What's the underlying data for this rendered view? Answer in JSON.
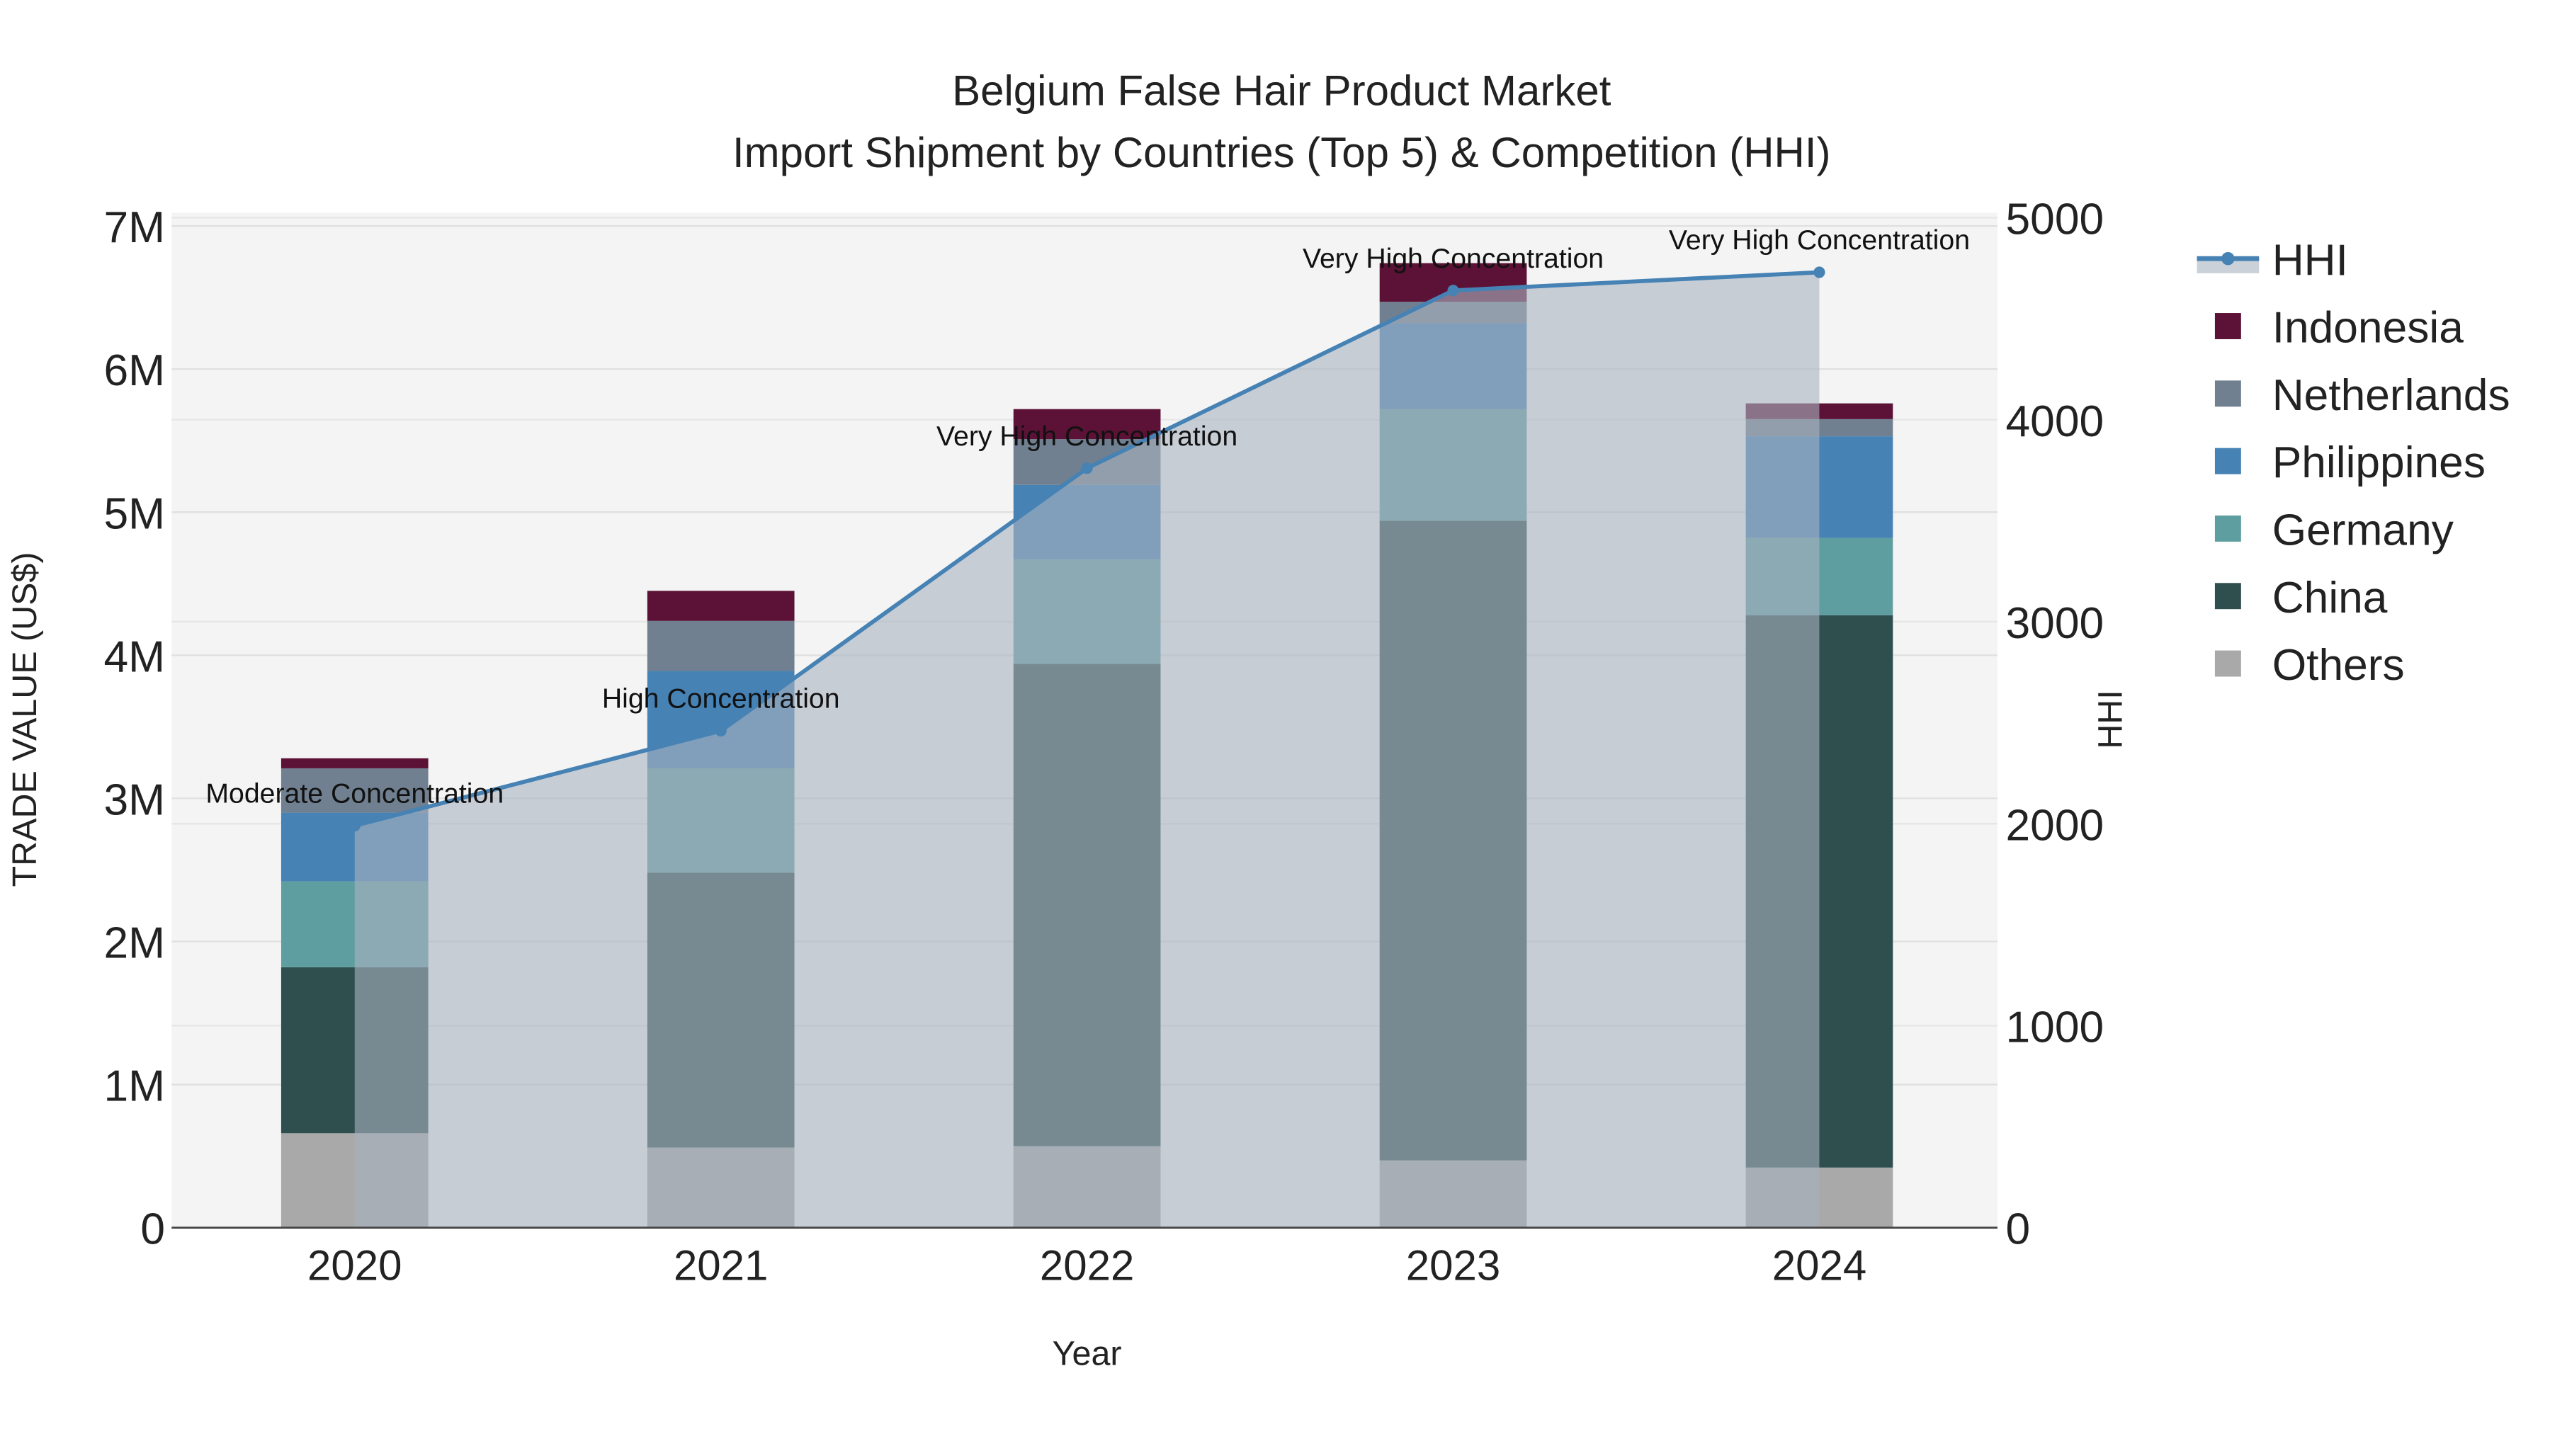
{
  "chart_data": {
    "type": "bar",
    "stacked": true,
    "title": "Belgium False Hair Product Market",
    "subtitle": "Import Shipment by Countries (Top 5) & Competition (HHI)",
    "xlabel": "Year",
    "ylabel": "TRADE VALUE (US$)",
    "y2label": "HHI",
    "categories": [
      "2020",
      "2021",
      "2022",
      "2023",
      "2024"
    ],
    "ylim": [
      0,
      7000000
    ],
    "y2lim": [
      0,
      5000
    ],
    "yticks": [
      {
        "v": 0,
        "label": "0"
      },
      {
        "v": 1000000,
        "label": "1M"
      },
      {
        "v": 2000000,
        "label": "2M"
      },
      {
        "v": 3000000,
        "label": "3M"
      },
      {
        "v": 4000000,
        "label": "4M"
      },
      {
        "v": 5000000,
        "label": "5M"
      },
      {
        "v": 6000000,
        "label": "6M"
      },
      {
        "v": 7000000,
        "label": "7M"
      }
    ],
    "y2ticks": [
      {
        "v": 0,
        "label": "0"
      },
      {
        "v": 1000,
        "label": "1000"
      },
      {
        "v": 2000,
        "label": "2000"
      },
      {
        "v": 3000,
        "label": "3000"
      },
      {
        "v": 4000,
        "label": "4000"
      },
      {
        "v": 5000,
        "label": "5000"
      }
    ],
    "series": [
      {
        "name": "Others",
        "color": "#a9a9a9",
        "values": [
          660000,
          560000,
          570000,
          470000,
          420000
        ]
      },
      {
        "name": "China",
        "color": "#2f4f4f",
        "values": [
          1160000,
          1920000,
          3370000,
          4470000,
          3860000
        ]
      },
      {
        "name": "Germany",
        "color": "#5f9ea0",
        "values": [
          600000,
          730000,
          730000,
          780000,
          540000
        ]
      },
      {
        "name": "Philippines",
        "color": "#4682b4",
        "values": [
          480000,
          680000,
          520000,
          600000,
          710000
        ]
      },
      {
        "name": "Netherlands",
        "color": "#708090",
        "values": [
          310000,
          350000,
          320000,
          150000,
          120000
        ]
      },
      {
        "name": "Indonesia",
        "color": "#5c1236",
        "values": [
          70000,
          210000,
          210000,
          270000,
          110000
        ]
      }
    ],
    "hhi": {
      "name": "HHI",
      "color": "#4682b4",
      "values": [
        1990,
        2460,
        3760,
        4640,
        4730
      ],
      "annotations": [
        "Moderate Concentration",
        "High Concentration",
        "Very High Concentration",
        "Very High Concentration",
        "Very High Concentration"
      ]
    },
    "legend": {
      "placement": "right",
      "items": [
        "HHI",
        "Indonesia",
        "Netherlands",
        "Philippines",
        "Germany",
        "China",
        "Others"
      ]
    },
    "grid": true
  }
}
